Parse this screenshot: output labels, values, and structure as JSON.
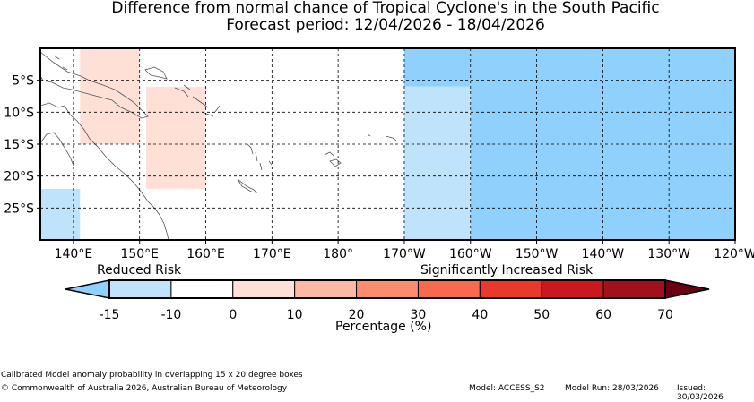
{
  "title": {
    "line1": "Difference from normal chance of Tropical Cyclone's in the South Pacific",
    "line2": "Forecast period: 12/04/2026 - 18/04/2026"
  },
  "map": {
    "lon_range": [
      135,
      240
    ],
    "lat_range": [
      0,
      -30
    ],
    "x_ticks": [
      "140°E",
      "150°E",
      "160°E",
      "170°E",
      "180°",
      "170°W",
      "160°W",
      "150°W",
      "140°W",
      "130°W",
      "120°W"
    ],
    "y_ticks": [
      "5°S",
      "10°S",
      "15°S",
      "20°S",
      "25°S"
    ],
    "gridlines": true,
    "boxes": [
      {
        "lon": [
          141,
          150
        ],
        "lat": [
          0,
          -15
        ],
        "category": "0-10"
      },
      {
        "lon": [
          151,
          160
        ],
        "lat": [
          -6,
          -22
        ],
        "category": "0-10"
      },
      {
        "lon": [
          135,
          141
        ],
        "lat": [
          -22,
          -30
        ],
        "category": "-15--10"
      },
      {
        "lon": [
          190,
          200
        ],
        "lat": [
          0,
          -6
        ],
        "category": "-20--15"
      },
      {
        "lon": [
          190,
          200
        ],
        "lat": [
          -6,
          -30
        ],
        "category": "-15--10"
      },
      {
        "lon": [
          200,
          240
        ],
        "lat": [
          0,
          -30
        ],
        "category": "-20--15"
      }
    ]
  },
  "colorbar": {
    "reduced_label": "Reduced Risk",
    "increased_label": "Significantly Increased Risk",
    "xlabel": "Percentage (%)",
    "ticks": [
      "-15",
      "-10",
      "0",
      "10",
      "20",
      "30",
      "40",
      "50",
      "60",
      "70"
    ],
    "colors": [
      "#bfe3fb",
      "#ffffff",
      "#ffe0d7",
      "#fbb8a2",
      "#fa8d6d",
      "#f86a50",
      "#e9392a",
      "#c91820",
      "#a1111a"
    ],
    "under_color": "#8fd1fc",
    "over_color": "#6b0010"
  },
  "colors": {
    "strong_reduced": "#8fd1fc",
    "reduced": "#bfe3fb",
    "slight_increase": "#ffe0d7"
  },
  "footer": {
    "left1": "Calibrated Model anomaly probability in overlapping 15 x 20 degree boxes",
    "left2": "© Commonwealth of Australia 2026, Australian Bureau of Meteorology",
    "model": "Model: ACCESS_S2",
    "run": "Model Run: 28/03/2026",
    "issued": "Issued: 30/03/2026"
  }
}
